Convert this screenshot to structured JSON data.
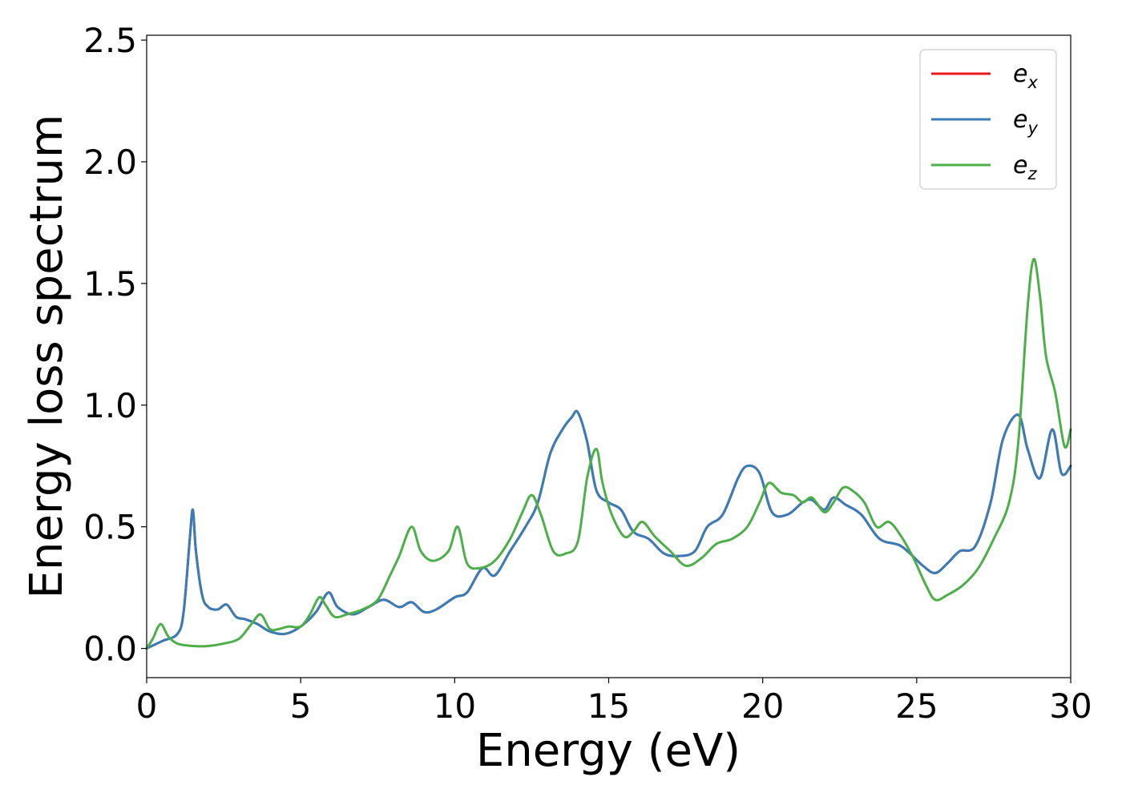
{
  "chart_data": {
    "type": "line",
    "title": "",
    "xlabel": "Energy (eV)",
    "ylabel": "Energy loss spectrum",
    "xlim": [
      0,
      30
    ],
    "ylim": [
      -0.12,
      2.52
    ],
    "xticks": [
      0,
      5,
      10,
      15,
      20,
      25,
      30
    ],
    "xtick_labels": [
      "0",
      "5",
      "10",
      "15",
      "20",
      "25",
      "30"
    ],
    "yticks": [
      0.0,
      0.5,
      1.0,
      1.5,
      2.0,
      2.5
    ],
    "ytick_labels": [
      "0.0",
      "0.5",
      "1.0",
      "1.5",
      "2.0",
      "2.5"
    ],
    "grid": false,
    "legend_position": "top-right",
    "series": [
      {
        "name": "e_x",
        "legend_base": "e",
        "legend_sub": "x",
        "color": "#e41a1c",
        "x": [
          0,
          0.5,
          1.0,
          1.2,
          1.4,
          1.5,
          1.6,
          1.8,
          2.0,
          2.3,
          2.6,
          2.9,
          3.2,
          3.6,
          4.0,
          4.5,
          5.0,
          5.5,
          5.9,
          6.2,
          6.7,
          7.2,
          7.7,
          8.2,
          8.6,
          9.0,
          9.4,
          10.0,
          10.4,
          10.9,
          11.3,
          11.8,
          12.3,
          12.7,
          13.1,
          13.5,
          13.8,
          14.0,
          14.3,
          14.6,
          15.0,
          15.4,
          15.8,
          16.3,
          16.8,
          17.3,
          17.8,
          18.2,
          18.7,
          19.2,
          19.5,
          19.9,
          20.3,
          20.8,
          21.3,
          21.6,
          22.0,
          22.3,
          22.7,
          23.2,
          23.8,
          24.5,
          25.2,
          25.6,
          26.0,
          26.4,
          26.9,
          27.4,
          27.8,
          28.3,
          28.6,
          29.0,
          29.4,
          29.7,
          30.0
        ],
        "y": [
          0.0,
          0.03,
          0.06,
          0.15,
          0.45,
          0.57,
          0.4,
          0.22,
          0.17,
          0.16,
          0.18,
          0.13,
          0.12,
          0.1,
          0.07,
          0.06,
          0.09,
          0.15,
          0.23,
          0.17,
          0.14,
          0.17,
          0.2,
          0.17,
          0.19,
          0.15,
          0.16,
          0.21,
          0.23,
          0.33,
          0.3,
          0.4,
          0.5,
          0.6,
          0.8,
          0.9,
          0.95,
          0.97,
          0.85,
          0.65,
          0.6,
          0.57,
          0.48,
          0.45,
          0.39,
          0.38,
          0.4,
          0.5,
          0.55,
          0.7,
          0.75,
          0.72,
          0.56,
          0.55,
          0.6,
          0.61,
          0.57,
          0.62,
          0.59,
          0.55,
          0.45,
          0.42,
          0.34,
          0.31,
          0.35,
          0.4,
          0.42,
          0.6,
          0.86,
          0.96,
          0.82,
          0.7,
          0.9,
          0.72,
          0.75
        ]
      },
      {
        "name": "e_y",
        "legend_base": "e",
        "legend_sub": "y",
        "color": "#377eb8",
        "x": [
          0,
          0.5,
          1.0,
          1.2,
          1.4,
          1.5,
          1.6,
          1.8,
          2.0,
          2.3,
          2.6,
          2.9,
          3.2,
          3.6,
          4.0,
          4.5,
          5.0,
          5.5,
          5.9,
          6.2,
          6.7,
          7.2,
          7.7,
          8.2,
          8.6,
          9.0,
          9.4,
          10.0,
          10.4,
          10.9,
          11.3,
          11.8,
          12.3,
          12.7,
          13.1,
          13.5,
          13.8,
          14.0,
          14.3,
          14.6,
          15.0,
          15.4,
          15.8,
          16.3,
          16.8,
          17.3,
          17.8,
          18.2,
          18.7,
          19.2,
          19.5,
          19.9,
          20.3,
          20.8,
          21.3,
          21.6,
          22.0,
          22.3,
          22.7,
          23.2,
          23.8,
          24.5,
          25.2,
          25.6,
          26.0,
          26.4,
          26.9,
          27.4,
          27.8,
          28.3,
          28.6,
          29.0,
          29.4,
          29.7,
          30.0
        ],
        "y": [
          0.0,
          0.03,
          0.06,
          0.15,
          0.45,
          0.57,
          0.4,
          0.22,
          0.17,
          0.16,
          0.18,
          0.13,
          0.12,
          0.1,
          0.07,
          0.06,
          0.09,
          0.15,
          0.23,
          0.17,
          0.14,
          0.17,
          0.2,
          0.17,
          0.19,
          0.15,
          0.16,
          0.21,
          0.23,
          0.33,
          0.3,
          0.4,
          0.5,
          0.6,
          0.8,
          0.9,
          0.95,
          0.97,
          0.85,
          0.65,
          0.6,
          0.57,
          0.48,
          0.45,
          0.39,
          0.38,
          0.4,
          0.5,
          0.55,
          0.7,
          0.75,
          0.72,
          0.56,
          0.55,
          0.6,
          0.61,
          0.57,
          0.62,
          0.59,
          0.55,
          0.45,
          0.42,
          0.34,
          0.31,
          0.35,
          0.4,
          0.42,
          0.6,
          0.86,
          0.96,
          0.82,
          0.7,
          0.9,
          0.72,
          0.75
        ]
      },
      {
        "name": "e_z",
        "legend_base": "e",
        "legend_sub": "z",
        "color": "#4daf4a",
        "x": [
          0,
          0.2,
          0.45,
          0.7,
          1.0,
          1.5,
          2.0,
          2.5,
          3.0,
          3.4,
          3.7,
          4.0,
          4.3,
          4.6,
          5.0,
          5.3,
          5.6,
          5.8,
          6.1,
          6.5,
          7.0,
          7.5,
          7.9,
          8.2,
          8.6,
          8.9,
          9.3,
          9.8,
          10.1,
          10.4,
          10.8,
          11.3,
          11.8,
          12.2,
          12.5,
          12.8,
          13.2,
          13.6,
          14.0,
          14.3,
          14.6,
          14.8,
          15.1,
          15.5,
          15.8,
          16.1,
          16.5,
          17.0,
          17.5,
          18.0,
          18.5,
          19.0,
          19.5,
          19.9,
          20.2,
          20.6,
          21.0,
          21.3,
          21.6,
          22.0,
          22.3,
          22.6,
          22.9,
          23.3,
          23.7,
          24.1,
          24.5,
          24.9,
          25.3,
          25.6,
          26.0,
          26.5,
          27.0,
          27.5,
          28.0,
          28.3,
          28.6,
          28.8,
          29.0,
          29.2,
          29.5,
          29.8,
          30.0
        ],
        "y": [
          0.0,
          0.04,
          0.1,
          0.05,
          0.02,
          0.01,
          0.01,
          0.02,
          0.04,
          0.1,
          0.14,
          0.08,
          0.08,
          0.09,
          0.09,
          0.14,
          0.21,
          0.18,
          0.13,
          0.14,
          0.16,
          0.2,
          0.3,
          0.38,
          0.5,
          0.4,
          0.36,
          0.4,
          0.5,
          0.35,
          0.33,
          0.36,
          0.45,
          0.56,
          0.63,
          0.55,
          0.4,
          0.39,
          0.44,
          0.7,
          0.82,
          0.68,
          0.55,
          0.46,
          0.48,
          0.52,
          0.46,
          0.4,
          0.34,
          0.37,
          0.43,
          0.45,
          0.5,
          0.6,
          0.68,
          0.64,
          0.63,
          0.6,
          0.62,
          0.56,
          0.6,
          0.66,
          0.65,
          0.6,
          0.5,
          0.52,
          0.46,
          0.37,
          0.26,
          0.2,
          0.22,
          0.26,
          0.33,
          0.45,
          0.6,
          0.85,
          1.4,
          1.6,
          1.45,
          1.2,
          1.05,
          0.83,
          0.9
        ]
      }
    ]
  }
}
